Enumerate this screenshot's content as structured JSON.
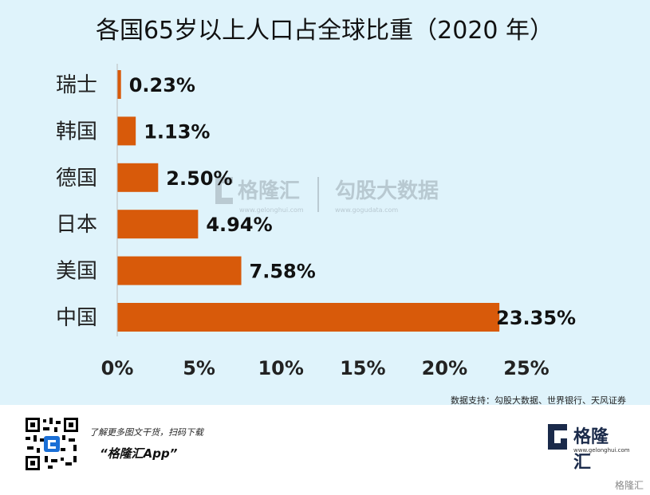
{
  "chart_data": {
    "type": "bar",
    "orientation": "horizontal",
    "title": "各国65岁以上人口占全球比重（2020 年）",
    "categories": [
      "瑞士",
      "韩国",
      "德国",
      "日本",
      "美国",
      "中国"
    ],
    "values": [
      0.23,
      1.13,
      2.5,
      4.94,
      7.58,
      23.35
    ],
    "value_labels": [
      "0.23%",
      "1.13%",
      "2.50%",
      "4.94%",
      "7.58%",
      "23.35%"
    ],
    "xlim": [
      0,
      25
    ],
    "xticks": [
      "0%",
      "5%",
      "10%",
      "15%",
      "20%",
      "25%"
    ],
    "xtick_values": [
      0,
      5,
      10,
      15,
      20,
      25
    ],
    "grid": false,
    "bar_color": "#d85a0a"
  },
  "source": "数据支持：勾股大数据、世界银行、天风证券",
  "watermark": {
    "brand1": "格隆汇",
    "brand1_url": "www.gelonghui.com",
    "brand2": "勾股大数据",
    "brand2_url": "www.gogudata.com"
  },
  "footer": {
    "tagline": "了解更多图文干货，扫码下载",
    "app_name": "“格隆汇App”",
    "logo_text": "格隆汇",
    "logo_url": "www.gelonghui.com",
    "corner_mark": "格隆汇"
  },
  "colors": {
    "background": "#dff3fb",
    "bar": "#d85a0a",
    "logo": "#1a2a4a"
  }
}
